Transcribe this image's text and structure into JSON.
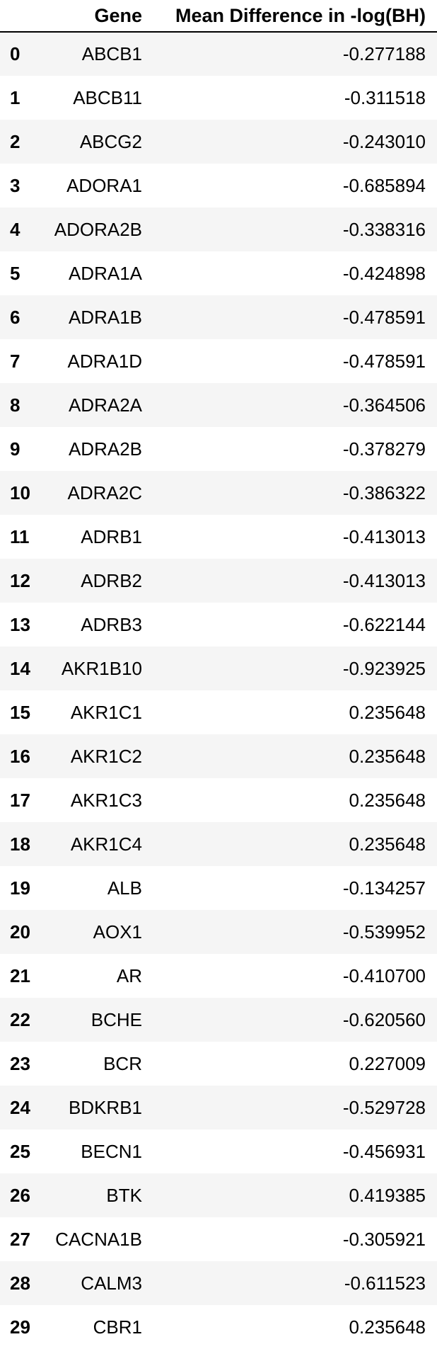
{
  "table": {
    "columns": [
      "",
      "Gene",
      "Mean Difference in -log(BH)"
    ],
    "rows": [
      {
        "index": "0",
        "gene": "ABCB1",
        "value": "-0.277188"
      },
      {
        "index": "1",
        "gene": "ABCB11",
        "value": "-0.311518"
      },
      {
        "index": "2",
        "gene": "ABCG2",
        "value": "-0.243010"
      },
      {
        "index": "3",
        "gene": "ADORA1",
        "value": "-0.685894"
      },
      {
        "index": "4",
        "gene": "ADORA2B",
        "value": "-0.338316"
      },
      {
        "index": "5",
        "gene": "ADRA1A",
        "value": "-0.424898"
      },
      {
        "index": "6",
        "gene": "ADRA1B",
        "value": "-0.478591"
      },
      {
        "index": "7",
        "gene": "ADRA1D",
        "value": "-0.478591"
      },
      {
        "index": "8",
        "gene": "ADRA2A",
        "value": "-0.364506"
      },
      {
        "index": "9",
        "gene": "ADRA2B",
        "value": "-0.378279"
      },
      {
        "index": "10",
        "gene": "ADRA2C",
        "value": "-0.386322"
      },
      {
        "index": "11",
        "gene": "ADRB1",
        "value": "-0.413013"
      },
      {
        "index": "12",
        "gene": "ADRB2",
        "value": "-0.413013"
      },
      {
        "index": "13",
        "gene": "ADRB3",
        "value": "-0.622144"
      },
      {
        "index": "14",
        "gene": "AKR1B10",
        "value": "-0.923925"
      },
      {
        "index": "15",
        "gene": "AKR1C1",
        "value": "0.235648"
      },
      {
        "index": "16",
        "gene": "AKR1C2",
        "value": "0.235648"
      },
      {
        "index": "17",
        "gene": "AKR1C3",
        "value": "0.235648"
      },
      {
        "index": "18",
        "gene": "AKR1C4",
        "value": "0.235648"
      },
      {
        "index": "19",
        "gene": "ALB",
        "value": "-0.134257"
      },
      {
        "index": "20",
        "gene": "AOX1",
        "value": "-0.539952"
      },
      {
        "index": "21",
        "gene": "AR",
        "value": "-0.410700"
      },
      {
        "index": "22",
        "gene": "BCHE",
        "value": "-0.620560"
      },
      {
        "index": "23",
        "gene": "BCR",
        "value": "0.227009"
      },
      {
        "index": "24",
        "gene": "BDKRB1",
        "value": "-0.529728"
      },
      {
        "index": "25",
        "gene": "BECN1",
        "value": "-0.456931"
      },
      {
        "index": "26",
        "gene": "BTK",
        "value": "0.419385"
      },
      {
        "index": "27",
        "gene": "CACNA1B",
        "value": "-0.305921"
      },
      {
        "index": "28",
        "gene": "CALM3",
        "value": "-0.611523"
      },
      {
        "index": "29",
        "gene": "CBR1",
        "value": "0.235648"
      }
    ]
  }
}
